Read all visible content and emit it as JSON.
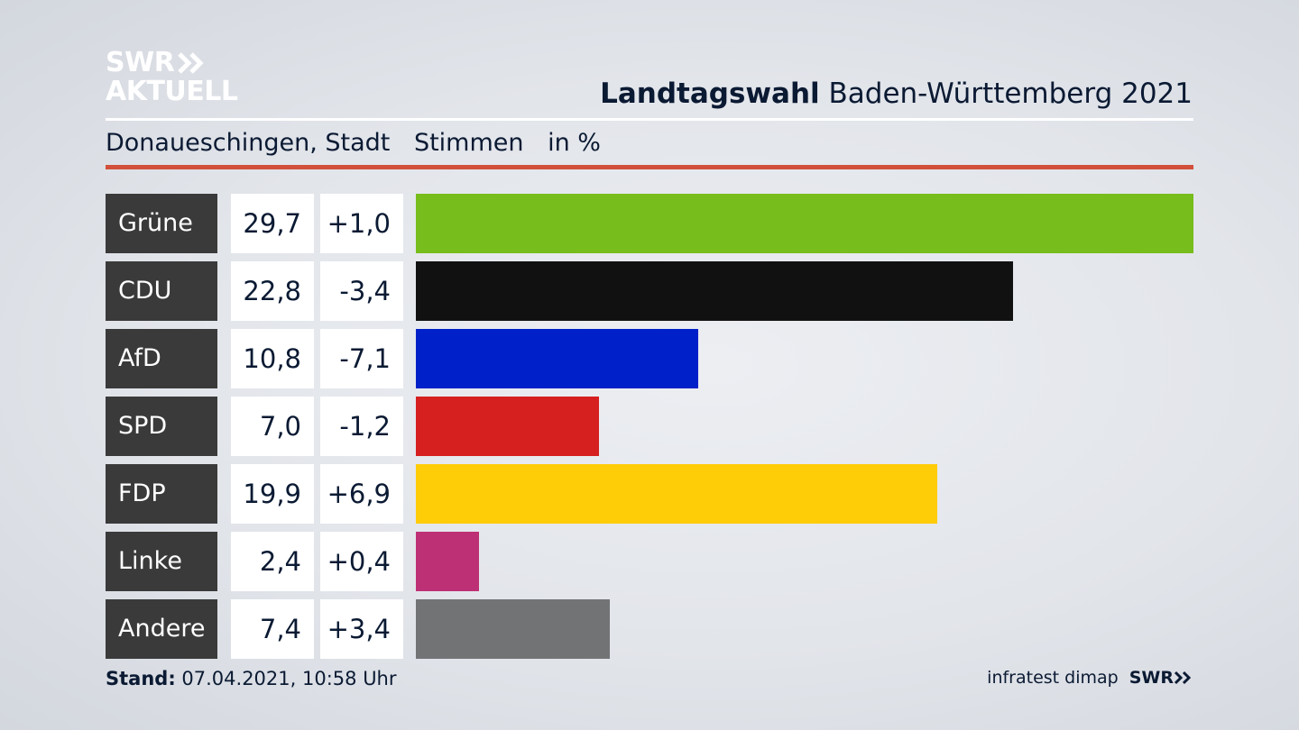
{
  "logo": {
    "line1": "SWR",
    "line2": "AKTUELL"
  },
  "header": {
    "title_bold": "Landtagswahl",
    "title_rest": "Baden-Württemberg 2021"
  },
  "subheader": {
    "place": "Donaueschingen, Stadt",
    "metric": "Stimmen",
    "unit": "in %"
  },
  "footer": {
    "stand_label": "Stand:",
    "stand_value": "07.04.2021, 10:58 Uhr",
    "source": "infratest dimap",
    "brand": "SWR"
  },
  "colors": {
    "accent_red": "#d2503b",
    "label_bg": "#3a3a3a"
  },
  "chart_data": {
    "type": "bar",
    "orientation": "horizontal",
    "categories": [
      "Grüne",
      "CDU",
      "AfD",
      "SPD",
      "FDP",
      "Linke",
      "Andere"
    ],
    "values": [
      29.7,
      22.8,
      10.8,
      7.0,
      19.9,
      2.4,
      7.4
    ],
    "value_labels": [
      "29,7",
      "22,8",
      "10,8",
      "7,0",
      "19,9",
      "2,4",
      "7,4"
    ],
    "changes": [
      "+1,0",
      "-3,4",
      "-7,1",
      "-1,2",
      "+6,9",
      "+0,4",
      "+3,4"
    ],
    "colors": [
      "#77bd1b",
      "#111111",
      "#0021c9",
      "#d61f1f",
      "#ffcc08",
      "#be3075",
      "#727375"
    ],
    "xlim": [
      0,
      29.7
    ]
  }
}
